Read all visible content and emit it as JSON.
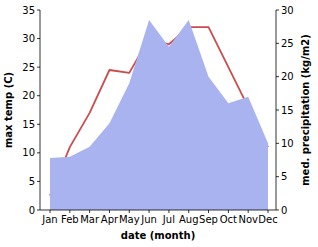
{
  "chart_data": {
    "type": "line",
    "categories": [
      "Jan",
      "Feb",
      "Mar",
      "Apr",
      "May",
      "Jun",
      "Jul",
      "Aug",
      "Sep",
      "Oct",
      "Nov",
      "Dec"
    ],
    "x_label": "date (month)",
    "y_label": "max temp (C)",
    "y2_label": "med. precipitation (kg/m2)",
    "ylim": [
      0,
      35
    ],
    "yticks": [
      0,
      5,
      10,
      15,
      20,
      25,
      30,
      35
    ],
    "y2lim": [
      0,
      30
    ],
    "y2ticks": [
      0,
      5,
      10,
      15,
      20,
      25,
      30
    ],
    "series": [
      {
        "name": "max temp",
        "type": "line",
        "color": "#cc4c4e",
        "values": [
          2.5,
          11,
          17,
          24.5,
          24,
          30,
          29,
          32,
          32,
          25,
          18,
          11
        ]
      },
      {
        "name": "med. precipitation",
        "type": "area",
        "axis": "y2",
        "color": "#a9b3ef",
        "values": [
          7.8,
          8,
          9.5,
          13,
          19,
          28.5,
          24.5,
          28.5,
          20,
          16,
          17,
          10
        ]
      }
    ]
  }
}
